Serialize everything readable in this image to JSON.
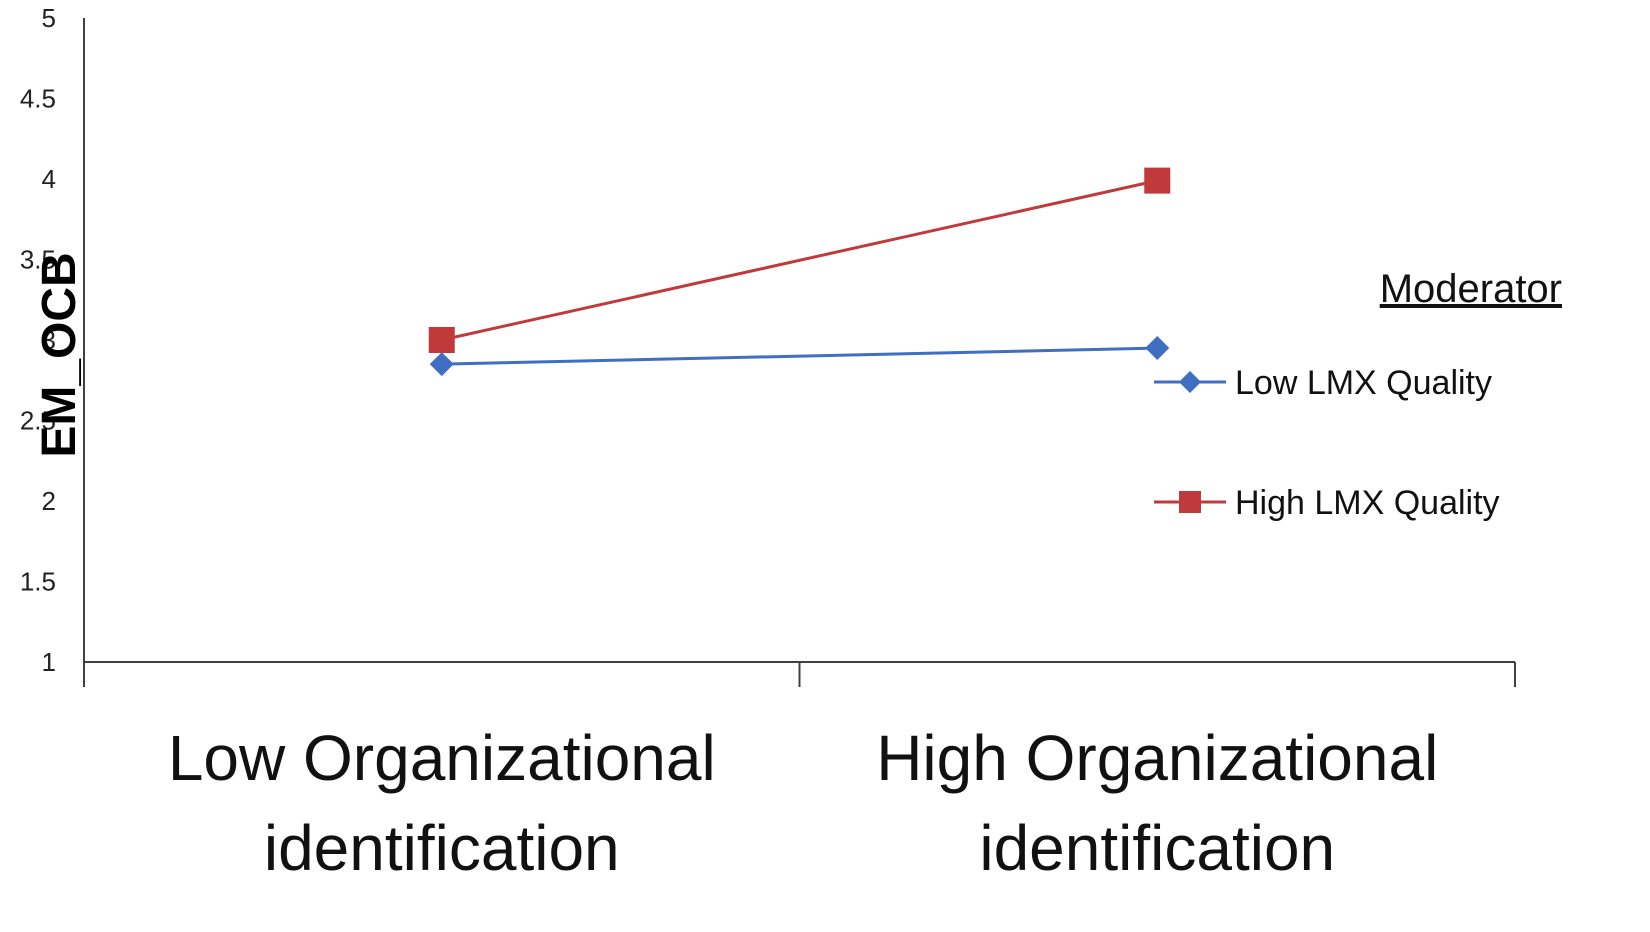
{
  "chart_data": {
    "type": "line",
    "title": "",
    "xlabel": "",
    "ylabel": "EM_OCB",
    "categories": [
      [
        "Low Organizational",
        "identification"
      ],
      [
        "High Organizational",
        "identification"
      ]
    ],
    "ylim": [
      1,
      5
    ],
    "yticks": [
      "1",
      "1.5",
      "2",
      "2.5",
      "3",
      "3.5",
      "4",
      "4.5",
      "5"
    ],
    "grid": false,
    "legend": {
      "title": "Moderator",
      "position": "right"
    },
    "series": [
      {
        "name": "Low LMX Quality",
        "values": [
          2.85,
          2.95
        ],
        "color": "#3F6EC3",
        "marker": "diamond"
      },
      {
        "name": "High LMX Quality",
        "values": [
          3.0,
          3.99
        ],
        "color": "#C0393B",
        "marker": "square"
      }
    ]
  }
}
